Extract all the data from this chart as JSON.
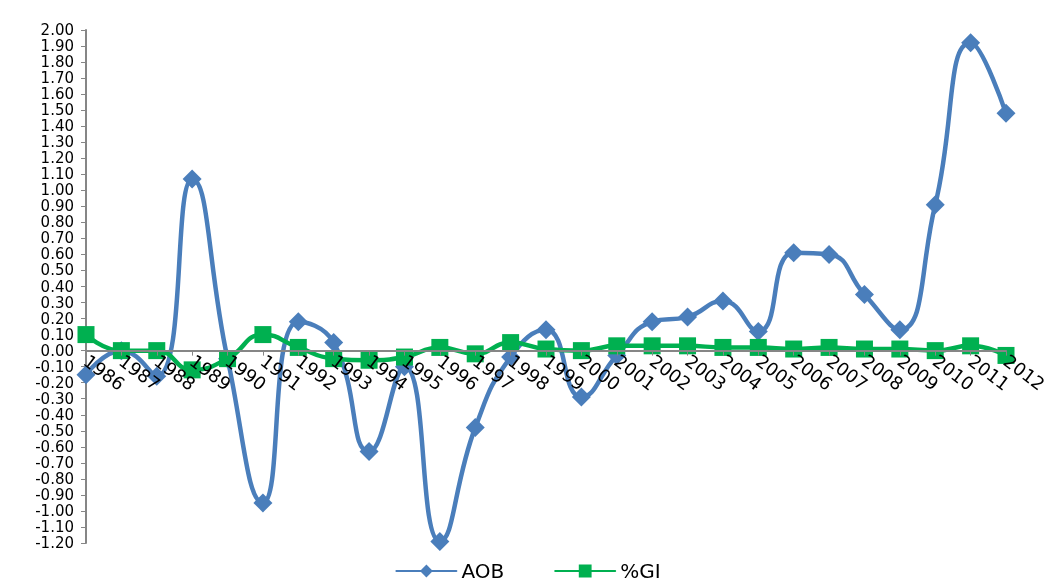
{
  "chart_data": {
    "type": "line",
    "categories": [
      "1986",
      "1987",
      "1988",
      "1989",
      "1990",
      "1991",
      "1992",
      "1993",
      "1994",
      "1995",
      "1996",
      "1997",
      "1998",
      "1999",
      "2000",
      "2001",
      "2002",
      "2003",
      "2004",
      "2005",
      "2006",
      "2007",
      "2008",
      "2009",
      "2010",
      "2011",
      "2012"
    ],
    "series": [
      {
        "name": "AOB",
        "color": "#4a7ebb",
        "marker": "diamond",
        "values": [
          -0.15,
          0.0,
          -0.16,
          1.07,
          -0.05,
          -0.95,
          0.18,
          0.05,
          -0.63,
          -0.1,
          -1.19,
          -0.48,
          -0.04,
          0.13,
          -0.29,
          -0.03,
          0.18,
          0.21,
          0.31,
          0.12,
          0.61,
          0.6,
          0.35,
          0.13,
          0.91,
          1.92,
          1.48
        ]
      },
      {
        "name": "%GI",
        "color": "#00b050",
        "marker": "square",
        "values": [
          0.1,
          0.0,
          0.0,
          -0.12,
          -0.05,
          0.1,
          0.02,
          -0.05,
          -0.06,
          -0.04,
          0.02,
          -0.02,
          0.05,
          0.01,
          0.0,
          0.03,
          0.03,
          0.03,
          0.02,
          0.02,
          0.01,
          0.02,
          0.01,
          0.01,
          0.0,
          0.03,
          -0.03
        ]
      }
    ],
    "ylim": [
      -1.2,
      2.0
    ],
    "yticks": [
      {
        "value": -1.2,
        "label": "-1.20"
      },
      {
        "value": -1.1,
        "label": "-1.10"
      },
      {
        "value": -1.0,
        "label": "-1.00"
      },
      {
        "value": -0.9,
        "label": "-0.90"
      },
      {
        "value": -0.8,
        "label": "-0.80"
      },
      {
        "value": -0.7,
        "label": "-0.70"
      },
      {
        "value": -0.6,
        "label": "-0.60"
      },
      {
        "value": -0.5,
        "label": "-0.50"
      },
      {
        "value": -0.4,
        "label": "-0.40"
      },
      {
        "value": -0.3,
        "label": "-0.30"
      },
      {
        "value": -0.2,
        "label": "-0.20"
      },
      {
        "value": -0.1,
        "label": "-0.10"
      },
      {
        "value": 0,
        "label": "0.00"
      },
      {
        "value": 0.1,
        "label": "0.10"
      },
      {
        "value": 0.2,
        "label": "0.20"
      },
      {
        "value": 0.3,
        "label": "0.30"
      },
      {
        "value": 0.4,
        "label": "0.40"
      },
      {
        "value": 0.5,
        "label": "0.50"
      },
      {
        "value": 0.6,
        "label": "0.60"
      },
      {
        "value": 0.7,
        "label": "0.70"
      },
      {
        "value": 0.8,
        "label": "0.80"
      },
      {
        "value": 0.9,
        "label": "0.90"
      },
      {
        "value": 1.0,
        "label": "1.00"
      },
      {
        "value": 1.1,
        "label": "1.10"
      },
      {
        "value": 1.2,
        "label": "1.20"
      },
      {
        "value": 1.3,
        "label": "1.30"
      },
      {
        "value": 1.4,
        "label": "1.40"
      },
      {
        "value": 1.5,
        "label": "1.50"
      },
      {
        "value": 1.6,
        "label": "1.60"
      },
      {
        "value": 1.7,
        "label": "1.70"
      },
      {
        "value": 1.8,
        "label": "1.80"
      },
      {
        "value": 1.9,
        "label": "1.90"
      },
      {
        "value": 2.0,
        "label": "2.00"
      }
    ],
    "grid": false,
    "legend": "bottom",
    "line_style": "solid"
  }
}
